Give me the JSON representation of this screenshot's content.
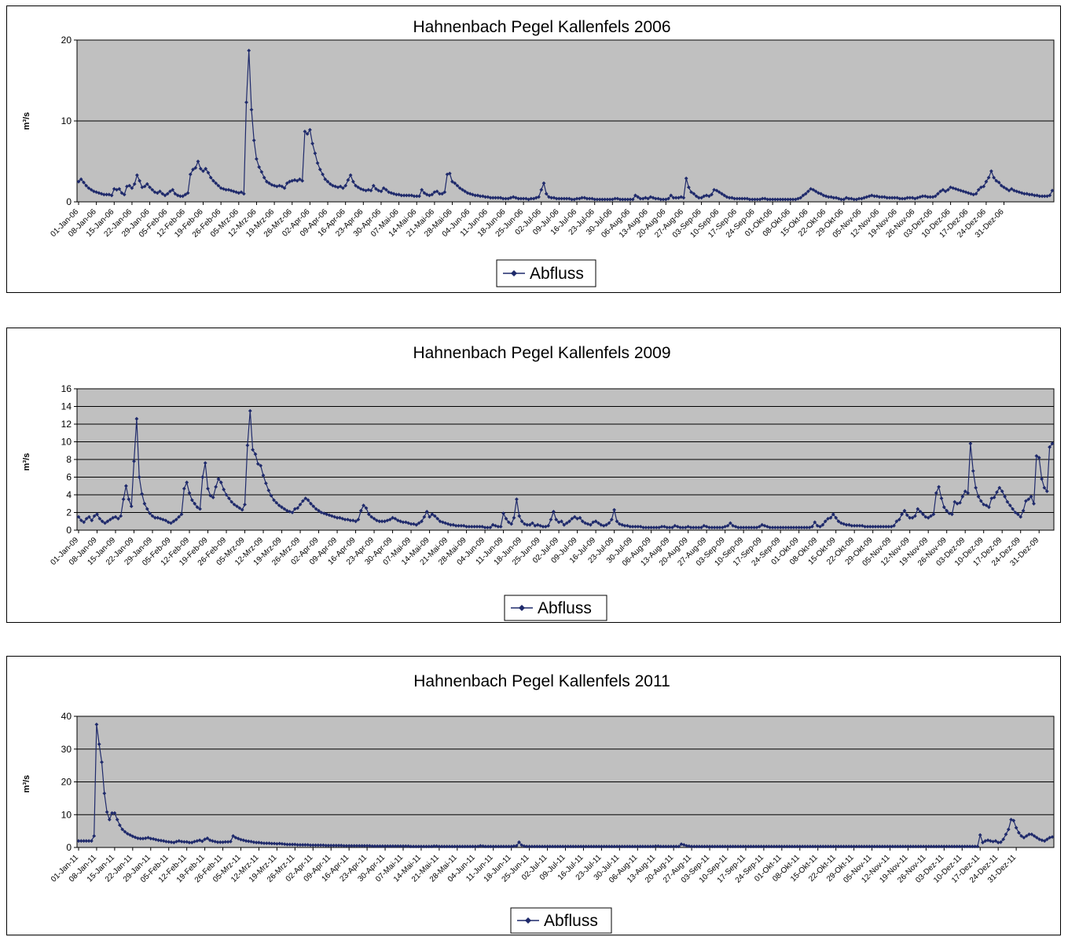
{
  "style": {
    "plot_bg": "#c0c0c0",
    "series_color": "#1f2a6b",
    "grid_color": "#000000"
  },
  "chart_data": [
    {
      "type": "line",
      "title": "Hahnenbach Pegel Kallenfels 2006",
      "ylabel": "m³/s",
      "ylim": [
        0,
        20
      ],
      "yticks": [
        0,
        10,
        20
      ],
      "legend": {
        "label": "Abfluss",
        "position": "bottom"
      },
      "series_name": "Abfluss",
      "x_tick_labels": [
        "01-Jan-06",
        "08-Jan-06",
        "15-Jan-06",
        "22-Jan-06",
        "29-Jan-06",
        "05-Feb-06",
        "12-Feb-06",
        "19-Feb-06",
        "26-Feb-06",
        "05-Mrz-06",
        "12-Mrz-06",
        "19-Mrz-06",
        "26-Mrz-06",
        "02-Apr-06",
        "09-Apr-06",
        "16-Apr-06",
        "23-Apr-06",
        "30-Apr-06",
        "07-Mai-06",
        "14-Mai-06",
        "21-Mai-06",
        "28-Mai-06",
        "04-Jun-06",
        "11-Jun-06",
        "18-Jun-06",
        "25-Jun-06",
        "02-Jul-06",
        "09-Jul-06",
        "16-Jul-06",
        "23-Jul-06",
        "30-Jul-06",
        "06-Aug-06",
        "13-Aug-06",
        "20-Aug-06",
        "27-Aug-06",
        "03-Sep-06",
        "10-Sep-06",
        "17-Sep-06",
        "24-Sep-06",
        "01-Okt-06",
        "08-Okt-06",
        "15-Okt-06",
        "22-Okt-06",
        "29-Okt-06",
        "05-Nov-06",
        "12-Nov-06",
        "19-Nov-06",
        "26-Nov-06",
        "03-Dez-06",
        "10-Dez-06",
        "17-Dez-06",
        "24-Dez-06",
        "31-Dez-06"
      ],
      "day_values": [
        2.5,
        2.8,
        2.4,
        2.0,
        1.7,
        1.5,
        1.3,
        1.2,
        1.1,
        1.0,
        0.9,
        0.9,
        0.9,
        0.8,
        1.6,
        1.5,
        1.6,
        1.1,
        0.9,
        1.9,
        2.0,
        1.7,
        2.2,
        3.3,
        2.6,
        1.8,
        1.9,
        2.2,
        1.8,
        1.5,
        1.2,
        1.1,
        1.3,
        1.0,
        0.8,
        1.0,
        1.3,
        1.5,
        1.0,
        0.8,
        0.7,
        0.7,
        0.9,
        1.1,
        3.4,
        4.0,
        4.2,
        5.0,
        4.1,
        3.8,
        4.1,
        3.6,
        3.0,
        2.6,
        2.3,
        2.0,
        1.7,
        1.6,
        1.5,
        1.5,
        1.4,
        1.3,
        1.2,
        1.1,
        1.2,
        1.0,
        12.3,
        18.7,
        11.4,
        7.6,
        5.3,
        4.3,
        3.7,
        3.0,
        2.5,
        2.3,
        2.1,
        2.0,
        1.9,
        2.0,
        1.9,
        1.7,
        2.3,
        2.5,
        2.6,
        2.7,
        2.6,
        2.8,
        2.6,
        8.7,
        8.4,
        8.9,
        7.2,
        6.0,
        4.8,
        4.0,
        3.4,
        2.8,
        2.5,
        2.2,
        2.0,
        1.9,
        1.8,
        1.9,
        1.7,
        2.0,
        2.7,
        3.3,
        2.5,
        2.0,
        1.8,
        1.6,
        1.5,
        1.4,
        1.5,
        1.4,
        2.0,
        1.6,
        1.4,
        1.3,
        1.7,
        1.5,
        1.2,
        1.1,
        1.0,
        0.9,
        0.9,
        0.8,
        0.8,
        0.8,
        0.8,
        0.8,
        0.7,
        0.7,
        0.7,
        1.5,
        1.1,
        0.9,
        0.8,
        0.9,
        1.2,
        1.3,
        1.0,
        1.0,
        1.2,
        3.4,
        3.5,
        2.5,
        2.3,
        2.0,
        1.7,
        1.5,
        1.3,
        1.1,
        1.0,
        0.9,
        0.8,
        0.8,
        0.7,
        0.7,
        0.6,
        0.6,
        0.5,
        0.5,
        0.5,
        0.5,
        0.5,
        0.4,
        0.4,
        0.4,
        0.5,
        0.6,
        0.5,
        0.4,
        0.4,
        0.4,
        0.4,
        0.3,
        0.4,
        0.4,
        0.5,
        0.6,
        1.5,
        2.3,
        1.0,
        0.6,
        0.5,
        0.5,
        0.4,
        0.4,
        0.4,
        0.4,
        0.4,
        0.4,
        0.3,
        0.3,
        0.4,
        0.4,
        0.5,
        0.5,
        0.4,
        0.4,
        0.4,
        0.3,
        0.3,
        0.3,
        0.3,
        0.3,
        0.3,
        0.3,
        0.3,
        0.4,
        0.4,
        0.3,
        0.3,
        0.3,
        0.3,
        0.3,
        0.3,
        0.8,
        0.6,
        0.4,
        0.4,
        0.5,
        0.4,
        0.6,
        0.5,
        0.4,
        0.4,
        0.3,
        0.3,
        0.3,
        0.4,
        0.8,
        0.5,
        0.5,
        0.5,
        0.6,
        0.5,
        2.9,
        1.8,
        1.2,
        1.0,
        0.7,
        0.5,
        0.5,
        0.7,
        0.8,
        0.7,
        0.9,
        1.5,
        1.4,
        1.2,
        1.0,
        0.8,
        0.6,
        0.5,
        0.5,
        0.4,
        0.4,
        0.4,
        0.4,
        0.4,
        0.4,
        0.3,
        0.3,
        0.3,
        0.3,
        0.3,
        0.4,
        0.4,
        0.3,
        0.3,
        0.3,
        0.3,
        0.3,
        0.3,
        0.3,
        0.3,
        0.3,
        0.3,
        0.3,
        0.3,
        0.4,
        0.5,
        0.8,
        1.0,
        1.3,
        1.6,
        1.5,
        1.3,
        1.1,
        1.0,
        0.8,
        0.7,
        0.6,
        0.6,
        0.5,
        0.5,
        0.4,
        0.3,
        0.3,
        0.5,
        0.4,
        0.4,
        0.3,
        0.3,
        0.4,
        0.4,
        0.5,
        0.6,
        0.7,
        0.8,
        0.7,
        0.7,
        0.6,
        0.6,
        0.6,
        0.5,
        0.5,
        0.5,
        0.5,
        0.5,
        0.4,
        0.4,
        0.4,
        0.5,
        0.5,
        0.5,
        0.4,
        0.5,
        0.6,
        0.7,
        0.7,
        0.6,
        0.6,
        0.6,
        0.7,
        1.0,
        1.3,
        1.5,
        1.3,
        1.5,
        1.8,
        1.7,
        1.6,
        1.5,
        1.4,
        1.3,
        1.2,
        1.1,
        1.0,
        0.9,
        1.0,
        1.5,
        1.8,
        1.9,
        2.5,
        3.0,
        3.8,
        3.0,
        2.6,
        2.4,
        2.0,
        1.8,
        1.6,
        1.4,
        1.6,
        1.4,
        1.3,
        1.2,
        1.1,
        1.0,
        1.0,
        0.9,
        0.9,
        0.8,
        0.8,
        0.7,
        0.7,
        0.7,
        0.7,
        0.8,
        1.4
      ]
    },
    {
      "type": "line",
      "title": "Hahnenbach Pegel Kallenfels 2009",
      "ylabel": "m³/s",
      "ylim": [
        0,
        16
      ],
      "yticks": [
        0,
        2,
        4,
        6,
        8,
        10,
        12,
        14,
        16
      ],
      "legend": {
        "label": "Abfluss",
        "position": "bottom"
      },
      "series_name": "Abfluss",
      "x_tick_labels": [
        "01-Jan-09",
        "08-Jan-09",
        "15-Jan-09",
        "22-Jan-09",
        "29-Jan-09",
        "05-Feb-09",
        "12-Feb-09",
        "19-Feb-09",
        "26-Feb-09",
        "05-Mrz-09",
        "12-Mrz-09",
        "19-Mrz-09",
        "26-Mrz-09",
        "02-Apr-09",
        "09-Apr-09",
        "16-Apr-09",
        "23-Apr-09",
        "30-Apr-09",
        "07-Mai-09",
        "14-Mai-09",
        "21-Mai-09",
        "28-Mai-09",
        "04-Jun-09",
        "11-Jun-09",
        "18-Jun-09",
        "25-Jun-09",
        "02-Jul-09",
        "09-Jul-09",
        "16-Jul-09",
        "23-Jul-09",
        "30-Jul-09",
        "06-Aug-09",
        "13-Aug-09",
        "20-Aug-09",
        "27-Aug-09",
        "03-Sep-09",
        "10-Sep-09",
        "17-Sep-09",
        "24-Sep-09",
        "01-Okt-09",
        "08-Okt-09",
        "15-Okt-09",
        "22-Okt-09",
        "29-Okt-09",
        "05-Nov-09",
        "12-Nov-09",
        "19-Nov-09",
        "26-Nov-09",
        "03-Dez-09",
        "10-Dez-09",
        "17-Dez-09",
        "24-Dez-09",
        "31-Dez-09"
      ],
      "day_values": [
        1.5,
        1.1,
        0.9,
        1.3,
        1.5,
        1.1,
        1.6,
        1.8,
        1.3,
        1.0,
        0.8,
        1.0,
        1.2,
        1.4,
        1.5,
        1.3,
        1.6,
        3.5,
        5.0,
        3.5,
        2.7,
        7.8,
        12.6,
        6.0,
        4.1,
        3.0,
        2.4,
        1.9,
        1.6,
        1.4,
        1.4,
        1.3,
        1.2,
        1.1,
        0.9,
        0.8,
        1.0,
        1.2,
        1.5,
        1.8,
        4.7,
        5.4,
        4.2,
        3.4,
        3.0,
        2.6,
        2.4,
        6.0,
        7.6,
        4.7,
        3.9,
        3.7,
        4.9,
        5.8,
        5.4,
        4.6,
        4.0,
        3.6,
        3.2,
        2.9,
        2.7,
        2.5,
        2.3,
        2.9,
        9.6,
        13.5,
        9.1,
        8.6,
        7.5,
        7.3,
        6.2,
        5.3,
        4.5,
        3.9,
        3.4,
        3.1,
        2.8,
        2.6,
        2.4,
        2.2,
        2.1,
        2.0,
        2.4,
        2.5,
        2.9,
        3.3,
        3.6,
        3.4,
        3.0,
        2.7,
        2.4,
        2.2,
        2.0,
        1.9,
        1.8,
        1.7,
        1.6,
        1.5,
        1.4,
        1.4,
        1.3,
        1.2,
        1.2,
        1.1,
        1.1,
        1.0,
        1.2,
        2.2,
        2.8,
        2.5,
        1.8,
        1.5,
        1.3,
        1.1,
        1.0,
        1.0,
        1.0,
        1.1,
        1.2,
        1.4,
        1.3,
        1.1,
        1.0,
        0.9,
        0.9,
        0.8,
        0.7,
        0.7,
        0.6,
        0.8,
        1.0,
        1.5,
        2.1,
        1.5,
        1.8,
        1.6,
        1.3,
        1.0,
        0.9,
        0.8,
        0.7,
        0.6,
        0.6,
        0.5,
        0.5,
        0.5,
        0.5,
        0.4,
        0.4,
        0.4,
        0.4,
        0.4,
        0.4,
        0.4,
        0.3,
        0.3,
        0.3,
        0.6,
        0.5,
        0.4,
        0.4,
        1.9,
        1.3,
        0.9,
        0.7,
        1.4,
        3.5,
        1.6,
        1.0,
        0.7,
        0.6,
        0.6,
        0.8,
        0.5,
        0.6,
        0.5,
        0.4,
        0.4,
        0.5,
        1.2,
        2.1,
        1.2,
        0.9,
        1.0,
        0.6,
        0.8,
        1.0,
        1.3,
        1.5,
        1.3,
        1.4,
        1.0,
        0.8,
        0.7,
        0.6,
        0.9,
        1.0,
        0.8,
        0.6,
        0.5,
        0.6,
        0.8,
        1.2,
        2.3,
        1.0,
        0.7,
        0.6,
        0.5,
        0.5,
        0.4,
        0.4,
        0.4,
        0.4,
        0.4,
        0.3,
        0.3,
        0.3,
        0.3,
        0.3,
        0.3,
        0.3,
        0.4,
        0.4,
        0.3,
        0.3,
        0.3,
        0.5,
        0.4,
        0.3,
        0.3,
        0.3,
        0.4,
        0.3,
        0.3,
        0.3,
        0.3,
        0.3,
        0.5,
        0.4,
        0.3,
        0.3,
        0.3,
        0.3,
        0.3,
        0.3,
        0.4,
        0.5,
        0.8,
        0.5,
        0.4,
        0.3,
        0.3,
        0.3,
        0.3,
        0.3,
        0.3,
        0.3,
        0.3,
        0.4,
        0.6,
        0.5,
        0.4,
        0.3,
        0.3,
        0.3,
        0.3,
        0.3,
        0.3,
        0.3,
        0.3,
        0.3,
        0.3,
        0.3,
        0.3,
        0.3,
        0.3,
        0.3,
        0.3,
        0.4,
        0.9,
        0.5,
        0.4,
        0.6,
        1.0,
        1.3,
        1.4,
        1.8,
        1.4,
        1.0,
        0.8,
        0.7,
        0.6,
        0.6,
        0.5,
        0.5,
        0.5,
        0.5,
        0.5,
        0.4,
        0.4,
        0.4,
        0.4,
        0.4,
        0.4,
        0.4,
        0.4,
        0.4,
        0.4,
        0.4,
        0.5,
        1.0,
        1.2,
        1.8,
        2.2,
        1.7,
        1.4,
        1.4,
        1.6,
        2.4,
        2.1,
        1.8,
        1.5,
        1.4,
        1.6,
        1.8,
        4.2,
        4.9,
        3.6,
        2.6,
        2.2,
        1.9,
        1.8,
        3.2,
        3.0,
        3.1,
        3.8,
        4.4,
        4.2,
        9.8,
        6.7,
        4.8,
        3.8,
        3.3,
        2.9,
        2.8,
        2.6,
        3.6,
        3.7,
        4.3,
        4.8,
        4.4,
        3.8,
        3.2,
        2.8,
        2.4,
        2.0,
        1.8,
        1.5,
        2.2,
        3.3,
        3.5,
        3.8,
        3.0,
        8.4,
        8.2,
        5.8,
        4.8,
        4.4,
        9.4,
        9.8
      ]
    },
    {
      "type": "line",
      "title": "Hahnenbach Pegel Kallenfels 2011",
      "ylabel": "m³/s",
      "ylim": [
        0,
        40
      ],
      "yticks": [
        0,
        10,
        20,
        30,
        40
      ],
      "legend": {
        "label": "Abfluss",
        "position": "bottom"
      },
      "series_name": "Abfluss",
      "x_tick_labels": [
        "01-Jan-11",
        "08-Jan-11",
        "15-Jan-11",
        "22-Jan-11",
        "29-Jan-11",
        "05-Feb-11",
        "12-Feb-11",
        "19-Feb-11",
        "26-Feb-11",
        "05-Mrz-11",
        "12-Mrz-11",
        "19-Mrz-11",
        "26-Mrz-11",
        "02-Apr-11",
        "09-Apr-11",
        "16-Apr-11",
        "23-Apr-11",
        "30-Apr-11",
        "07-Mai-11",
        "14-Mai-11",
        "21-Mai-11",
        "28-Mai-11",
        "04-Jun-11",
        "11-Jun-11",
        "18-Jun-11",
        "25-Jun-11",
        "02-Jul-11",
        "09-Jul-11",
        "16-Jul-11",
        "23-Jul-11",
        "30-Jul-11",
        "06-Aug-11",
        "13-Aug-11",
        "20-Aug-11",
        "27-Aug-11",
        "03-Sep-11",
        "10-Sep-11",
        "17-Sep-11",
        "24-Sep-11",
        "01-Okt-11",
        "08-Okt-11",
        "15-Okt-11",
        "22-Okt-11",
        "29-Okt-11",
        "05-Nov-11",
        "12-Nov-11",
        "19-Nov-11",
        "26-Nov-11",
        "03-Dez-11",
        "10-Dez-11",
        "17-Dez-11",
        "24-Dez-11",
        "31-Dez-11"
      ],
      "day_values": [
        2.0,
        2.0,
        2.0,
        2.0,
        2.0,
        2.0,
        3.5,
        37.5,
        31.5,
        26.0,
        16.5,
        10.8,
        8.5,
        10.5,
        10.5,
        8.5,
        6.8,
        5.5,
        4.8,
        4.2,
        3.8,
        3.4,
        3.1,
        2.8,
        2.7,
        2.7,
        2.8,
        3.0,
        2.7,
        2.6,
        2.4,
        2.2,
        2.1,
        2.0,
        1.8,
        1.7,
        1.6,
        1.5,
        1.8,
        2.0,
        1.8,
        1.7,
        1.7,
        1.5,
        1.5,
        1.8,
        2.0,
        2.2,
        1.9,
        2.5,
        2.8,
        2.2,
        2.0,
        1.8,
        1.6,
        1.6,
        1.6,
        1.7,
        1.7,
        1.8,
        3.5,
        3.0,
        2.7,
        2.4,
        2.2,
        2.0,
        1.9,
        1.8,
        1.6,
        1.5,
        1.5,
        1.4,
        1.3,
        1.3,
        1.3,
        1.2,
        1.2,
        1.1,
        1.2,
        1.1,
        1.0,
        0.9,
        0.9,
        0.9,
        0.9,
        0.8,
        0.8,
        0.8,
        0.8,
        0.8,
        0.7,
        0.7,
        0.7,
        0.7,
        0.7,
        0.7,
        0.6,
        0.6,
        0.6,
        0.6,
        0.6,
        0.6,
        0.6,
        0.5,
        0.5,
        0.5,
        0.5,
        0.5,
        0.5,
        0.5,
        0.5,
        0.5,
        0.5,
        0.5,
        0.4,
        0.4,
        0.4,
        0.4,
        0.4,
        0.4,
        0.4,
        0.4,
        0.4,
        0.4,
        0.4,
        0.4,
        0.4,
        0.4,
        0.4,
        0.3,
        0.3,
        0.3,
        0.3,
        0.3,
        0.3,
        0.3,
        0.3,
        0.3,
        0.4,
        0.4,
        0.3,
        0.3,
        0.3,
        0.3,
        0.3,
        0.3,
        0.3,
        0.3,
        0.3,
        0.3,
        0.3,
        0.3,
        0.3,
        0.3,
        0.3,
        0.3,
        0.5,
        0.4,
        0.3,
        0.3,
        0.3,
        0.3,
        0.3,
        0.3,
        0.3,
        0.3,
        0.3,
        0.3,
        0.3,
        0.4,
        0.5,
        1.6,
        0.7,
        0.4,
        0.3,
        0.3,
        0.3,
        0.3,
        0.3,
        0.3,
        0.3,
        0.3,
        0.3,
        0.3,
        0.3,
        0.3,
        0.3,
        0.3,
        0.3,
        0.3,
        0.3,
        0.3,
        0.3,
        0.3,
        0.3,
        0.3,
        0.3,
        0.3,
        0.3,
        0.3,
        0.3,
        0.3,
        0.3,
        0.3,
        0.3,
        0.3,
        0.3,
        0.3,
        0.3,
        0.3,
        0.3,
        0.3,
        0.3,
        0.3,
        0.3,
        0.3,
        0.3,
        0.3,
        0.3,
        0.3,
        0.3,
        0.3,
        0.3,
        0.3,
        0.4,
        0.4,
        0.3,
        0.3,
        0.3,
        0.3,
        0.3,
        0.3,
        0.3,
        0.3,
        1.0,
        0.8,
        0.5,
        0.4,
        0.3,
        0.3,
        0.3,
        0.3,
        0.3,
        0.3,
        0.3,
        0.3,
        0.3,
        0.3,
        0.3,
        0.3,
        0.3,
        0.3,
        0.3,
        0.3,
        0.3,
        0.3,
        0.3,
        0.3,
        0.3,
        0.3,
        0.3,
        0.3,
        0.3,
        0.3,
        0.3,
        0.3,
        0.3,
        0.3,
        0.3,
        0.3,
        0.3,
        0.3,
        0.3,
        0.3,
        0.3,
        0.3,
        0.3,
        0.3,
        0.3,
        0.3,
        0.3,
        0.3,
        0.3,
        0.3,
        0.3,
        0.3,
        0.3,
        0.3,
        0.3,
        0.3,
        0.3,
        0.3,
        0.3,
        0.3,
        0.3,
        0.3,
        0.3,
        0.3,
        0.3,
        0.3,
        0.3,
        0.3,
        0.3,
        0.3,
        0.3,
        0.3,
        0.3,
        0.3,
        0.3,
        0.3,
        0.3,
        0.3,
        0.3,
        0.3,
        0.3,
        0.3,
        0.3,
        0.3,
        0.3,
        0.3,
        0.3,
        0.3,
        0.3,
        0.3,
        0.3,
        0.3,
        0.3,
        0.3,
        0.3,
        0.3,
        0.3,
        0.3,
        0.3,
        0.3,
        0.3,
        0.3,
        0.3,
        0.3,
        0.3,
        0.3,
        0.3,
        0.3,
        0.3,
        0.3,
        0.3,
        0.3,
        0.3,
        0.3,
        0.3,
        0.3,
        3.8,
        1.5,
        2.0,
        2.2,
        2.0,
        1.8,
        2.0,
        1.5,
        1.6,
        2.5,
        4.0,
        5.5,
        8.5,
        8.2,
        6.0,
        4.5,
        3.5,
        3.0,
        3.5,
        4.0,
        4.0,
        3.5,
        3.0,
        2.5,
        2.2,
        2.0,
        2.5,
        3.0,
        3.2
      ]
    }
  ]
}
